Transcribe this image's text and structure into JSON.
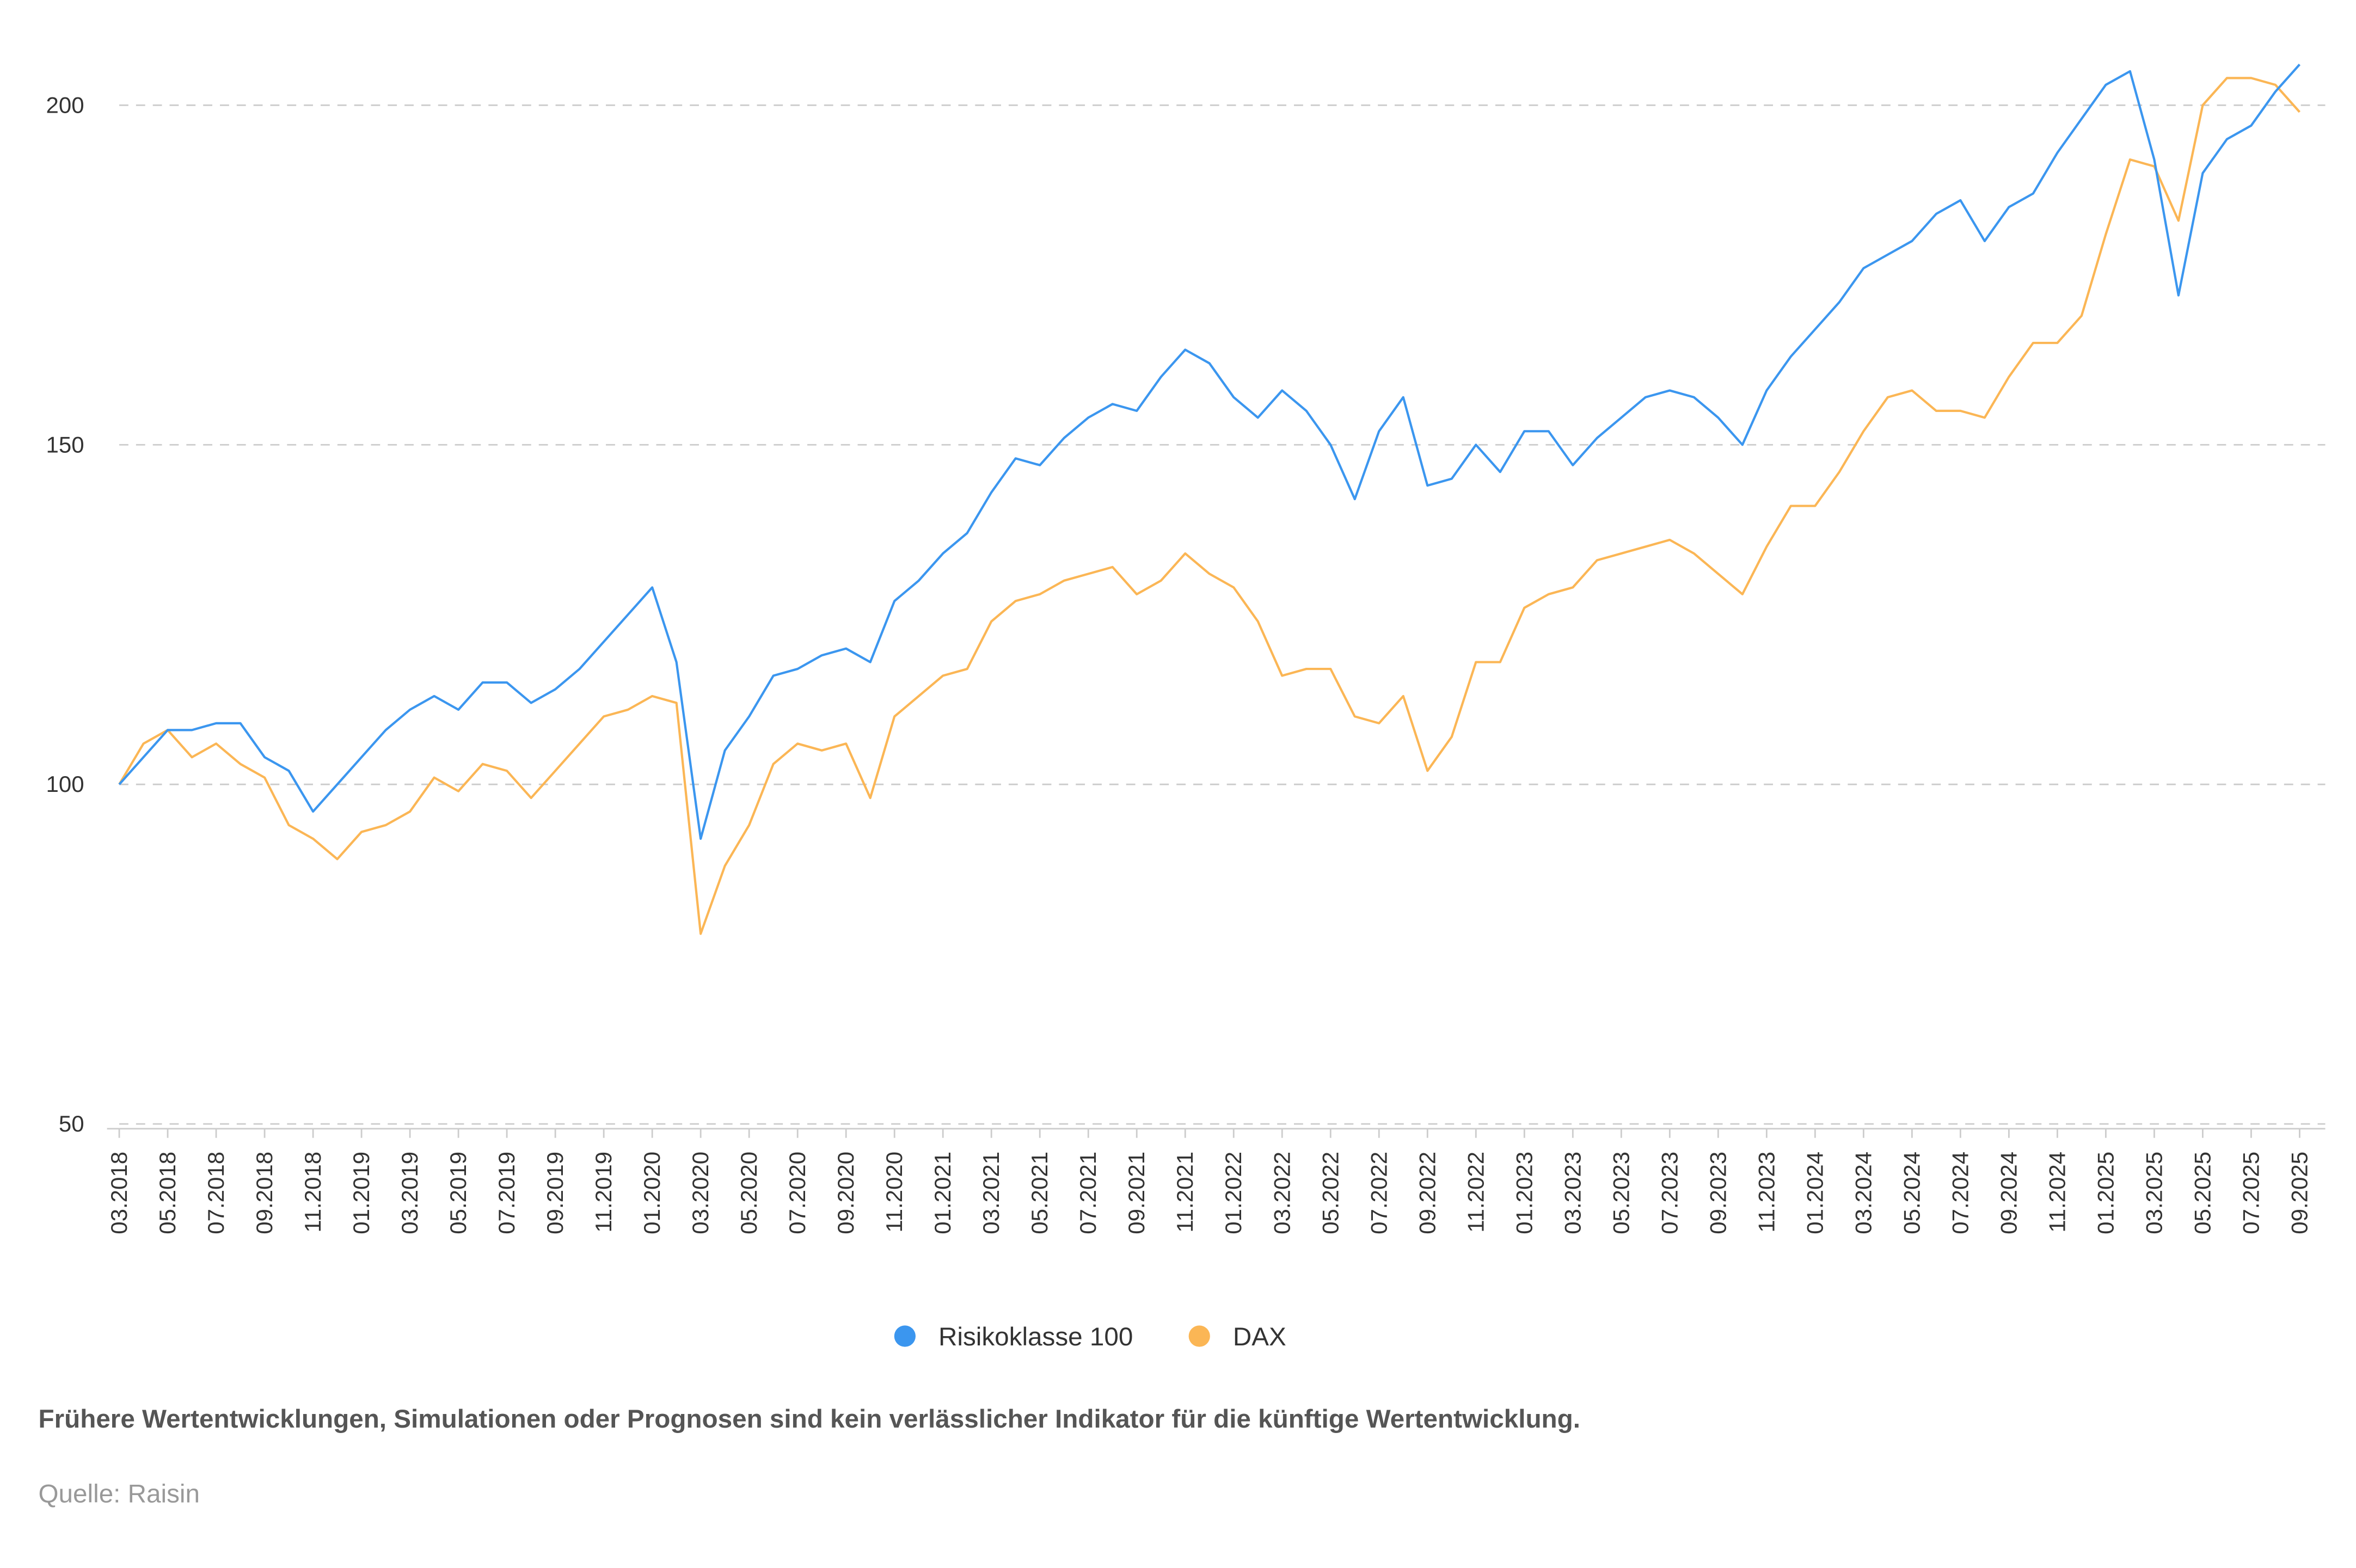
{
  "chart_data": {
    "type": "line",
    "categories": [
      "03.2018",
      null,
      "05.2018",
      null,
      "07.2018",
      null,
      "09.2018",
      null,
      "11.2018",
      null,
      "01.2019",
      null,
      "03.2019",
      null,
      "05.2019",
      null,
      "07.2019",
      null,
      "09.2019",
      null,
      "11.2019",
      null,
      "01.2020",
      null,
      "03.2020",
      null,
      "05.2020",
      null,
      "07.2020",
      null,
      "09.2020",
      null,
      "11.2020",
      null,
      "01.2021",
      null,
      "03.2021",
      null,
      "05.2021",
      null,
      "07.2021",
      null,
      "09.2021",
      null,
      "11.2021",
      null,
      "01.2022",
      null,
      "03.2022",
      null,
      "05.2022",
      null,
      "07.2022",
      null,
      "09.2022",
      null,
      "11.2022",
      null,
      "01.2023",
      null,
      "03.2023",
      null,
      "05.2023",
      null,
      "07.2023",
      null,
      "09.2023",
      null,
      "11.2023",
      null,
      "01.2024",
      null,
      "03.2024",
      null,
      "05.2024",
      null,
      "07.2024",
      null,
      "09.2024",
      null,
      "11.2024",
      null,
      "01.2025",
      null,
      "03.2025",
      null,
      "05.2025",
      null,
      "07.2025",
      null,
      "09.2025"
    ],
    "series": [
      {
        "name": "Risikoklasse 100",
        "color": "#3b96ef",
        "values": [
          100,
          104,
          108,
          108,
          109,
          109,
          104,
          102,
          96,
          100,
          104,
          108,
          111,
          113,
          111,
          115,
          115,
          112,
          114,
          117,
          121,
          125,
          129,
          118,
          92,
          105,
          110,
          116,
          117,
          119,
          120,
          118,
          127,
          130,
          134,
          137,
          143,
          148,
          147,
          151,
          154,
          156,
          155,
          160,
          164,
          162,
          157,
          154,
          158,
          155,
          150,
          142,
          152,
          157,
          144,
          145,
          150,
          146,
          152,
          152,
          147,
          151,
          154,
          157,
          158,
          157,
          154,
          150,
          158,
          163,
          167,
          171,
          176,
          178,
          180,
          184,
          186,
          180,
          185,
          187,
          193,
          198,
          203,
          205,
          192,
          172,
          190,
          195,
          197,
          202,
          206
        ]
      },
      {
        "name": "DAX",
        "color": "#fbb655",
        "values": [
          100,
          106,
          108,
          104,
          106,
          103,
          101,
          94,
          92,
          89,
          93,
          94,
          96,
          101,
          99,
          103,
          102,
          98,
          102,
          106,
          110,
          111,
          113,
          112,
          78,
          88,
          94,
          103,
          106,
          105,
          106,
          98,
          110,
          113,
          116,
          117,
          124,
          127,
          128,
          130,
          131,
          132,
          128,
          130,
          134,
          131,
          129,
          124,
          116,
          117,
          117,
          110,
          109,
          113,
          102,
          107,
          118,
          118,
          126,
          128,
          129,
          133,
          134,
          135,
          136,
          134,
          131,
          128,
          135,
          141,
          141,
          146,
          152,
          157,
          158,
          155,
          155,
          154,
          160,
          165,
          165,
          169,
          181,
          192,
          191,
          183,
          200,
          204,
          204,
          203,
          199
        ]
      }
    ],
    "ylim": [
      49.3,
      211
    ],
    "yticks": [
      50,
      100,
      150,
      200
    ],
    "grid": true,
    "footnote": "Frühere Wertentwicklungen, Simulationen oder Prognosen sind kein verlässlicher Indikator für die künftige Wertentwicklung.",
    "source": "Quelle: Raisin"
  }
}
